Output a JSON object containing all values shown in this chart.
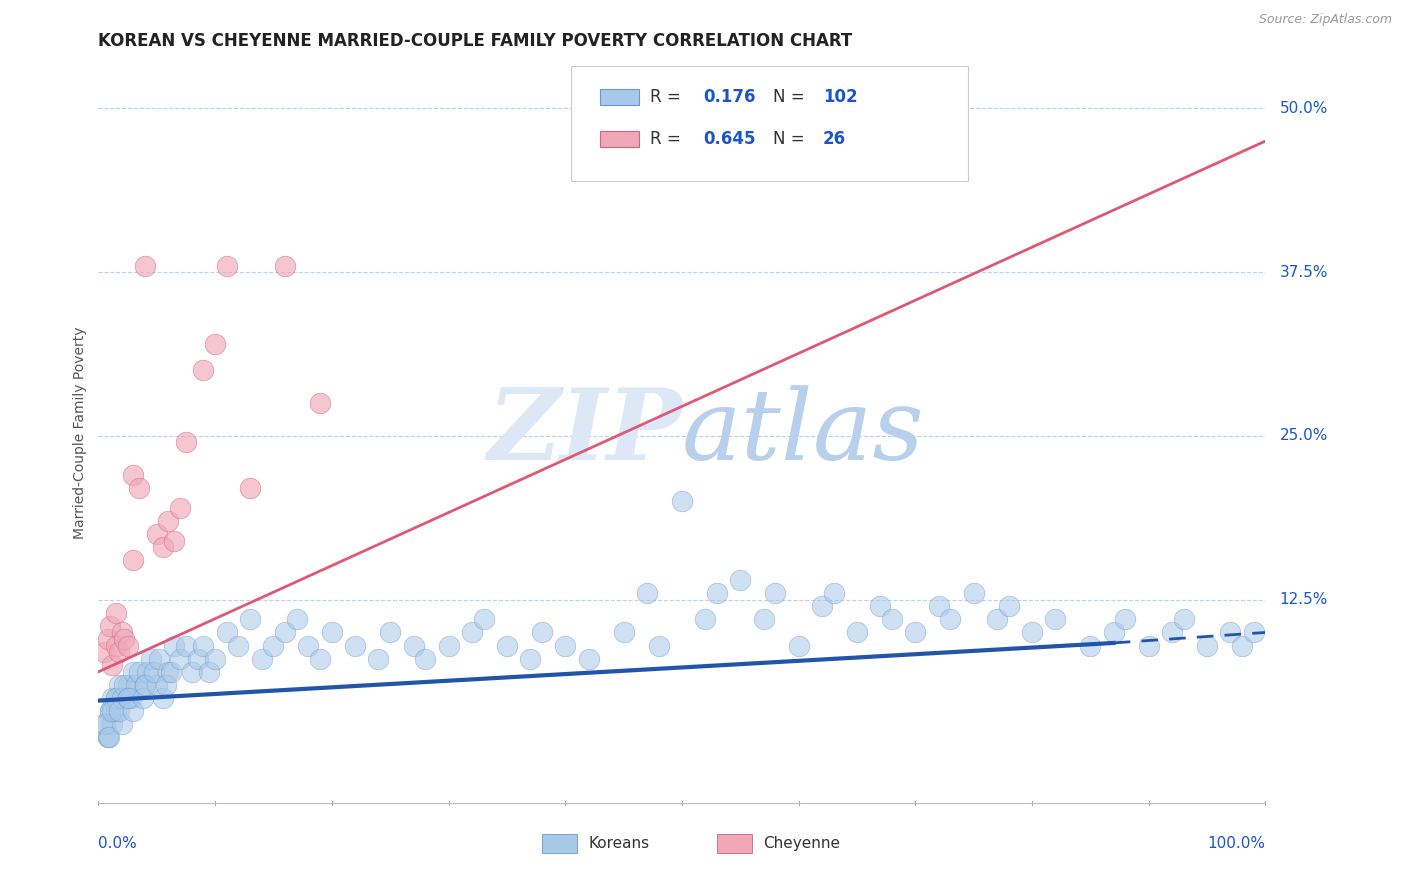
{
  "title": "KOREAN VS CHEYENNE MARRIED-COUPLE FAMILY POVERTY CORRELATION CHART",
  "source_text": "Source: ZipAtlas.com",
  "ylabel": "Married-Couple Family Poverty",
  "xlim": [
    0.0,
    1.0
  ],
  "ylim": [
    -0.03,
    0.535
  ],
  "legend_korean_R": "0.176",
  "legend_korean_N": "102",
  "legend_cheyenne_R": "0.645",
  "legend_cheyenne_N": "26",
  "korean_color": "#A8C8E8",
  "cheyenne_color": "#F0A8B8",
  "trend_korean_color": "#2255AA",
  "trend_cheyenne_color": "#E05878",
  "legend_value_color": "#1A55CC",
  "background_color": "#FFFFFF",
  "grid_color": "#C0D0E8",
  "title_fontsize": 12,
  "source_fontsize": 9,
  "ytick_labels": [
    "12.5%",
    "25.0%",
    "37.5%",
    "50.0%"
  ],
  "ytick_vals": [
    0.125,
    0.25,
    0.375,
    0.5
  ],
  "korean_scatter_x": [
    0.005,
    0.008,
    0.01,
    0.012,
    0.015,
    0.008,
    0.01,
    0.006,
    0.009,
    0.012,
    0.015,
    0.018,
    0.02,
    0.015,
    0.012,
    0.025,
    0.02,
    0.018,
    0.022,
    0.025,
    0.03,
    0.028,
    0.032,
    0.03,
    0.025,
    0.035,
    0.04,
    0.038,
    0.042,
    0.04,
    0.045,
    0.05,
    0.048,
    0.055,
    0.052,
    0.06,
    0.058,
    0.065,
    0.062,
    0.07,
    0.075,
    0.08,
    0.085,
    0.09,
    0.095,
    0.1,
    0.11,
    0.12,
    0.13,
    0.14,
    0.15,
    0.16,
    0.17,
    0.18,
    0.19,
    0.2,
    0.22,
    0.24,
    0.25,
    0.27,
    0.28,
    0.3,
    0.32,
    0.33,
    0.35,
    0.37,
    0.38,
    0.4,
    0.42,
    0.45,
    0.47,
    0.48,
    0.5,
    0.52,
    0.53,
    0.55,
    0.57,
    0.58,
    0.6,
    0.62,
    0.63,
    0.65,
    0.67,
    0.68,
    0.7,
    0.72,
    0.73,
    0.75,
    0.77,
    0.78,
    0.8,
    0.82,
    0.85,
    0.87,
    0.88,
    0.9,
    0.92,
    0.93,
    0.95,
    0.97,
    0.98,
    0.99
  ],
  "korean_scatter_y": [
    0.03,
    0.02,
    0.04,
    0.03,
    0.05,
    0.02,
    0.04,
    0.03,
    0.02,
    0.05,
    0.04,
    0.06,
    0.03,
    0.05,
    0.04,
    0.06,
    0.05,
    0.04,
    0.06,
    0.05,
    0.07,
    0.05,
    0.06,
    0.04,
    0.05,
    0.07,
    0.06,
    0.05,
    0.07,
    0.06,
    0.08,
    0.06,
    0.07,
    0.05,
    0.08,
    0.07,
    0.06,
    0.09,
    0.07,
    0.08,
    0.09,
    0.07,
    0.08,
    0.09,
    0.07,
    0.08,
    0.1,
    0.09,
    0.11,
    0.08,
    0.09,
    0.1,
    0.11,
    0.09,
    0.08,
    0.1,
    0.09,
    0.08,
    0.1,
    0.09,
    0.08,
    0.09,
    0.1,
    0.11,
    0.09,
    0.08,
    0.1,
    0.09,
    0.08,
    0.1,
    0.13,
    0.09,
    0.2,
    0.11,
    0.13,
    0.14,
    0.11,
    0.13,
    0.09,
    0.12,
    0.13,
    0.1,
    0.12,
    0.11,
    0.1,
    0.12,
    0.11,
    0.13,
    0.11,
    0.12,
    0.1,
    0.11,
    0.09,
    0.1,
    0.11,
    0.09,
    0.1,
    0.11,
    0.09,
    0.1,
    0.09,
    0.1
  ],
  "cheyenne_scatter_x": [
    0.005,
    0.008,
    0.01,
    0.012,
    0.015,
    0.018,
    0.02,
    0.022,
    0.015,
    0.025,
    0.03,
    0.035,
    0.04,
    0.03,
    0.05,
    0.055,
    0.06,
    0.065,
    0.07,
    0.075,
    0.09,
    0.1,
    0.11,
    0.13,
    0.16,
    0.19
  ],
  "cheyenne_scatter_y": [
    0.085,
    0.095,
    0.105,
    0.075,
    0.09,
    0.085,
    0.1,
    0.095,
    0.115,
    0.09,
    0.22,
    0.21,
    0.38,
    0.155,
    0.175,
    0.165,
    0.185,
    0.17,
    0.195,
    0.245,
    0.3,
    0.32,
    0.38,
    0.21,
    0.38,
    0.275
  ],
  "korean_trend_x0": 0.0,
  "korean_trend_x1": 0.87,
  "korean_trend_x2": 1.0,
  "korean_trend_y0": 0.048,
  "korean_trend_y1": 0.092,
  "korean_trend_y2": 0.1,
  "cheyenne_trend_x0": 0.0,
  "cheyenne_trend_x1": 1.0,
  "cheyenne_trend_y0": 0.07,
  "cheyenne_trend_y1": 0.475
}
